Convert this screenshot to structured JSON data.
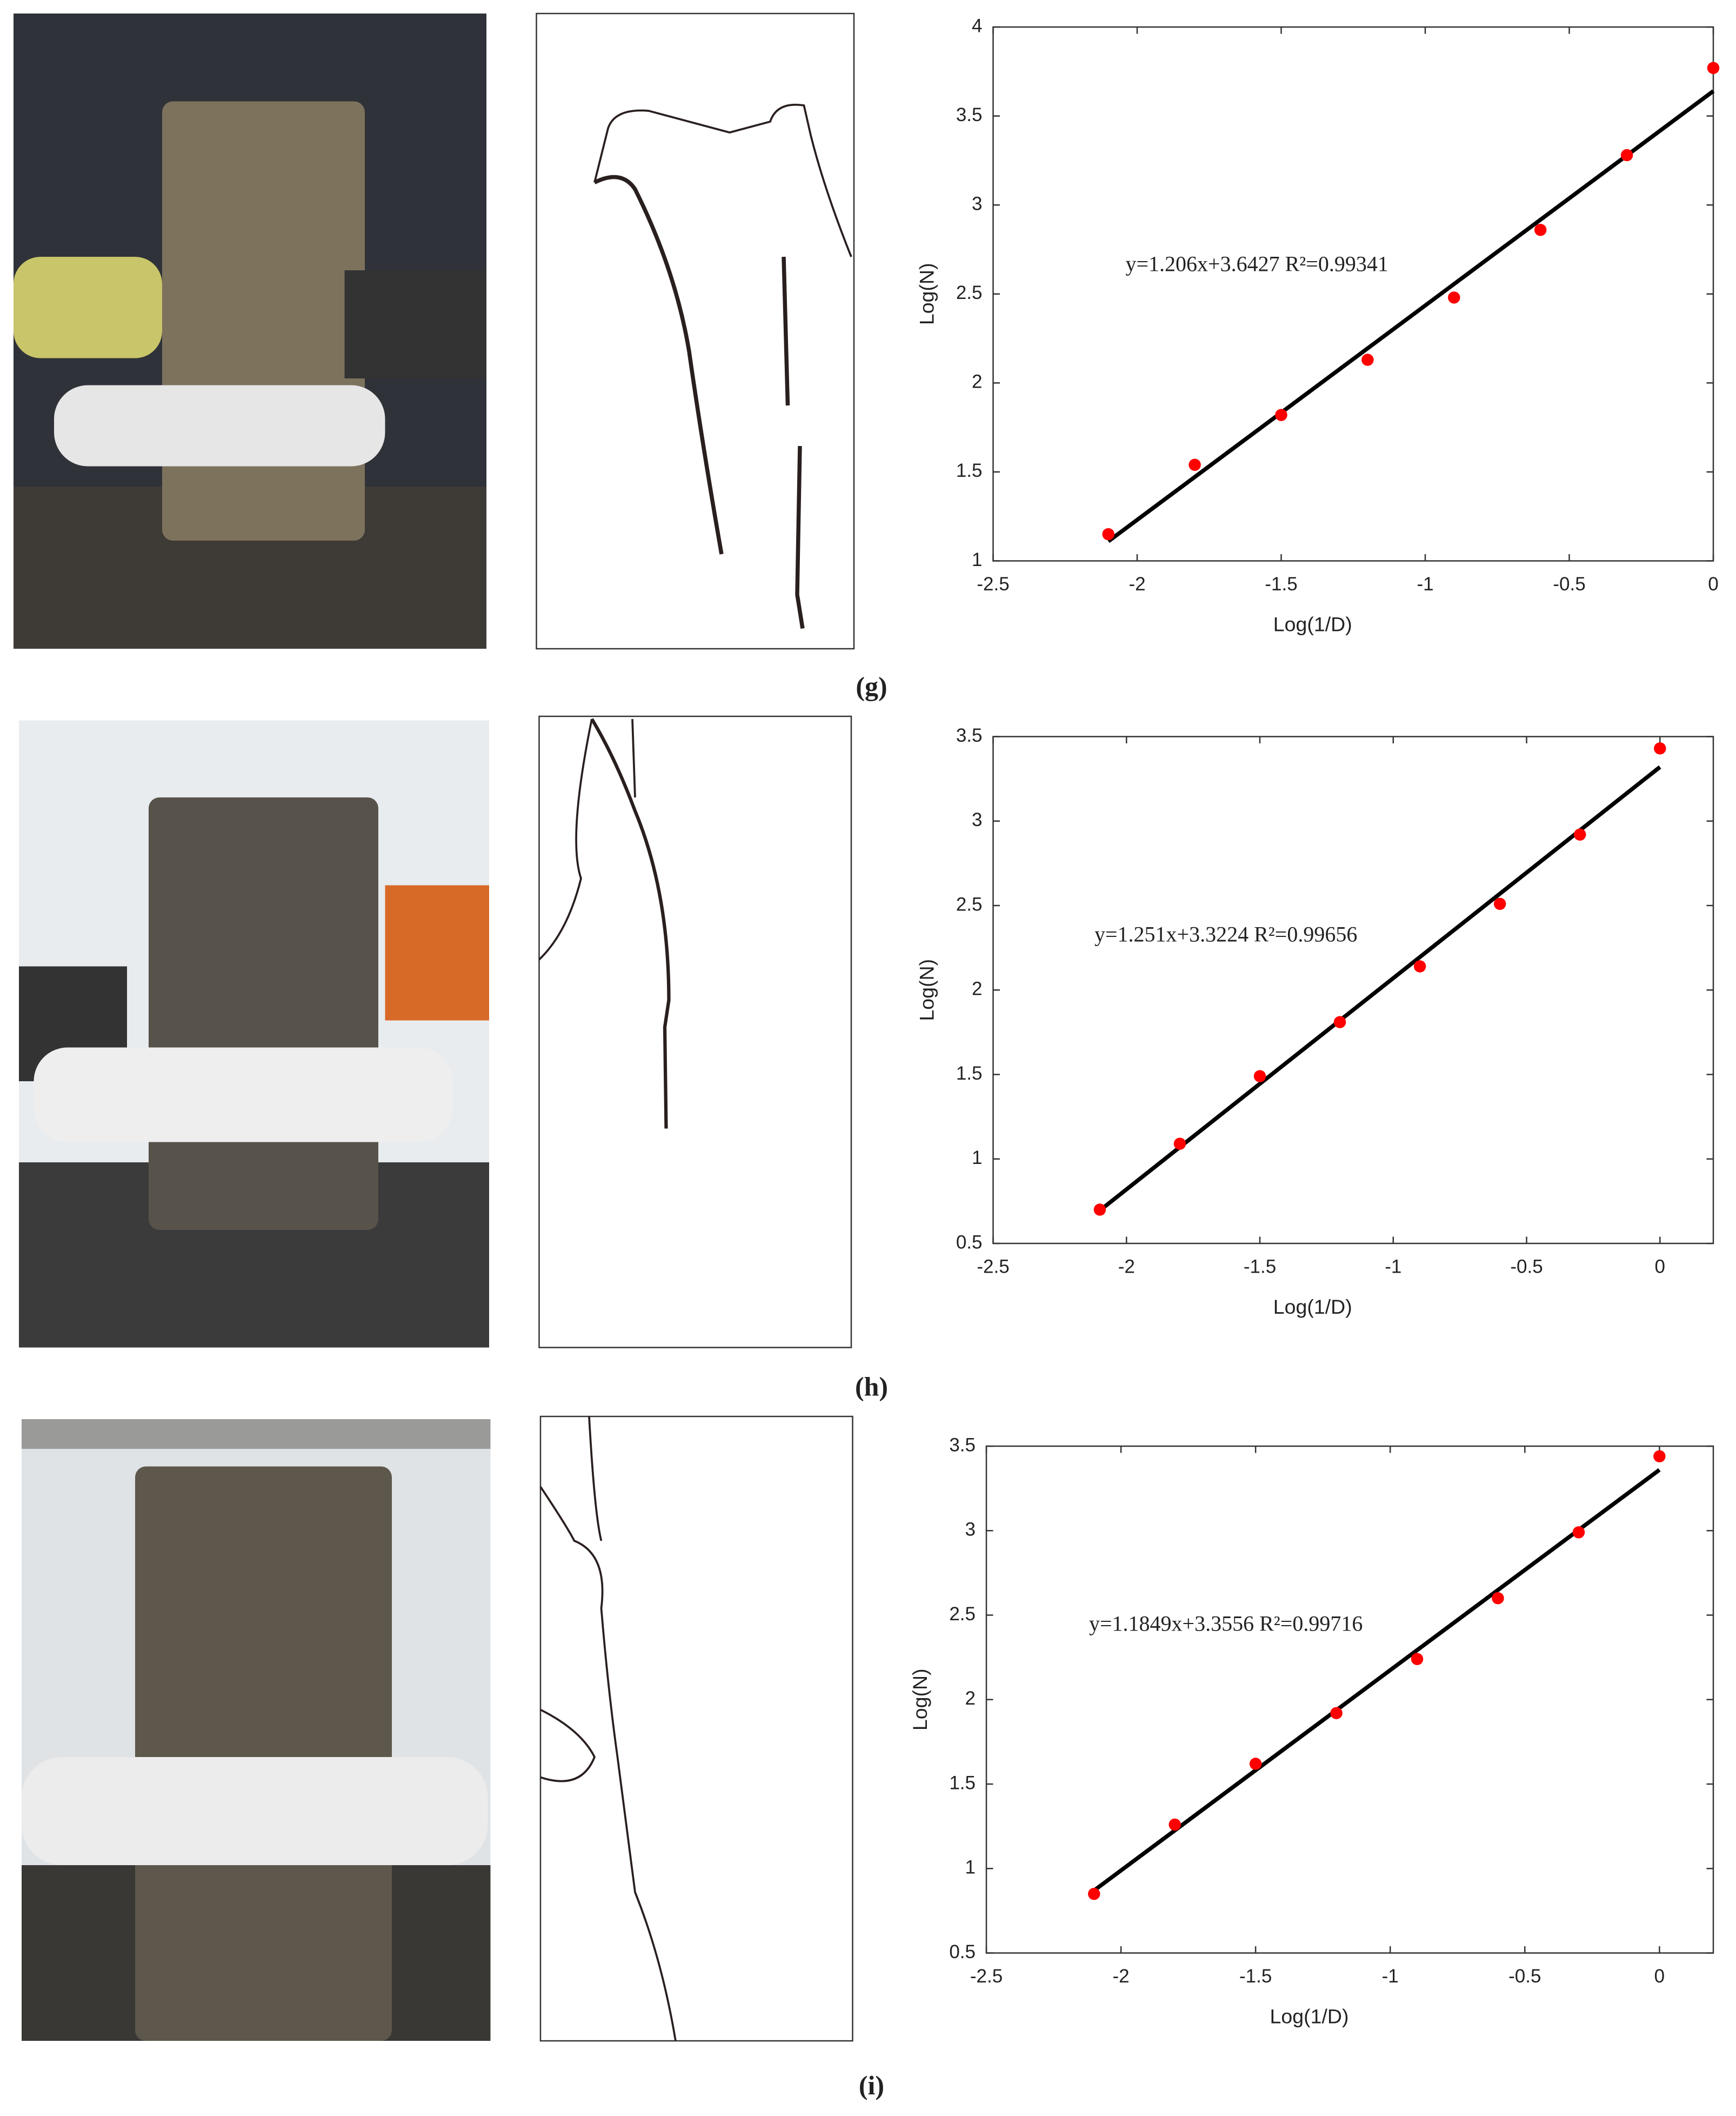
{
  "panel_labels": [
    "(g)",
    "(h)",
    "(i)"
  ],
  "chart_data": [
    {
      "type": "scatter",
      "xlabel": "Log(1/D)",
      "ylabel": "Log(N)",
      "annotation": "y=1.206x+3.6427   R²=0.99341",
      "xlim": [
        -2.5,
        0
      ],
      "ylim": [
        1,
        4
      ],
      "xticks": [
        -2.5,
        -2,
        -1.5,
        -1,
        -0.5,
        0
      ],
      "yticks": [
        1,
        1.5,
        2,
        2.5,
        3,
        3.5,
        4
      ],
      "points": {
        "color": "#ff0000",
        "x": [
          -2.1,
          -1.8,
          -1.5,
          -1.2,
          -0.9,
          -0.6,
          -0.3,
          0
        ],
        "values": [
          1.15,
          1.54,
          1.82,
          2.13,
          2.48,
          2.86,
          3.28,
          3.77
        ]
      },
      "fit_line": {
        "color": "#000000",
        "x": [
          -2.1,
          0
        ],
        "values": [
          1.11,
          3.64
        ]
      }
    },
    {
      "type": "scatter",
      "xlabel": "Log(1/D)",
      "ylabel": "Log(N)",
      "annotation": "y=1.251x+3.3224   R²=0.99656",
      "xlim": [
        -2.5,
        0.2
      ],
      "ylim": [
        0.5,
        3.5
      ],
      "xticks": [
        -2.5,
        -2,
        -1.5,
        -1,
        -0.5,
        0
      ],
      "yticks": [
        0.5,
        1,
        1.5,
        2,
        2.5,
        3,
        3.5
      ],
      "points": {
        "color": "#ff0000",
        "x": [
          -2.1,
          -1.8,
          -1.5,
          -1.2,
          -0.9,
          -0.6,
          -0.3,
          0
        ],
        "values": [
          0.7,
          1.09,
          1.49,
          1.81,
          2.14,
          2.51,
          2.92,
          3.43
        ]
      },
      "fit_line": {
        "color": "#000000",
        "x": [
          -2.1,
          0
        ],
        "values": [
          0.695,
          3.32
        ]
      }
    },
    {
      "type": "scatter",
      "xlabel": "Log(1/D)",
      "ylabel": "Log(N)",
      "annotation": "y=1.1849x+3.3556   R²=0.99716",
      "xlim": [
        -2.5,
        0.2
      ],
      "ylim": [
        0.5,
        3.5
      ],
      "xticks": [
        -2.5,
        -2,
        -1.5,
        -1,
        -0.5,
        0
      ],
      "yticks": [
        0.5,
        1,
        1.5,
        2,
        2.5,
        3,
        3.5
      ],
      "points": {
        "color": "#ff0000",
        "x": [
          -2.1,
          -1.8,
          -1.5,
          -1.2,
          -0.9,
          -0.6,
          -0.3,
          0
        ],
        "values": [
          0.85,
          1.26,
          1.62,
          1.92,
          2.24,
          2.6,
          2.99,
          3.44
        ]
      },
      "fit_line": {
        "color": "#000000",
        "x": [
          -2.1,
          0
        ],
        "values": [
          0.87,
          3.36
        ]
      }
    }
  ]
}
